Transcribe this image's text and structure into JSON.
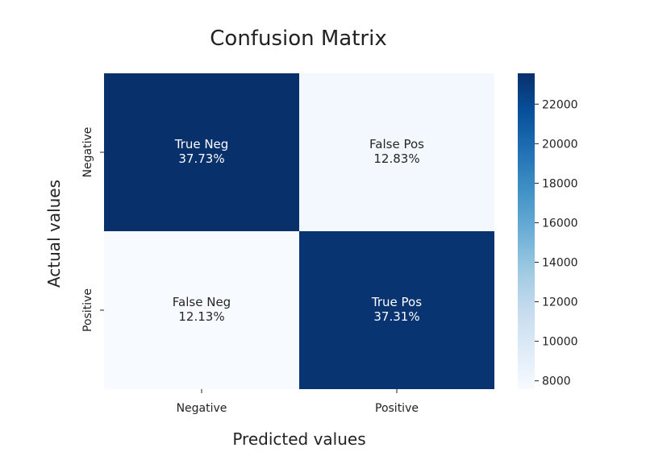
{
  "chart_data": {
    "type": "heatmap",
    "title": "Confusion Matrix",
    "xlabel": "Predicted values",
    "ylabel": "Actual values",
    "x_categories": [
      "Negative",
      "Positive"
    ],
    "y_categories": [
      "Negative",
      "Positive"
    ],
    "cells": [
      [
        {
          "label": "True Neg",
          "percent": "37.73%",
          "percent_value": 37.73,
          "count": 23560
        },
        {
          "label": "False Pos",
          "percent": "12.83%",
          "percent_value": 12.83,
          "count": 8010
        }
      ],
      [
        {
          "label": "False Neg",
          "percent": "12.13%",
          "percent_value": 12.13,
          "count": 7580
        },
        {
          "label": "True Pos",
          "percent": "37.31%",
          "percent_value": 37.31,
          "count": 23300
        }
      ]
    ],
    "colorbar": {
      "min": 7580,
      "max": 23560,
      "ticks": [
        8000,
        10000,
        12000,
        14000,
        16000,
        18000,
        20000,
        22000
      ],
      "colormap": "Blues",
      "color_low": "#f7fbff",
      "color_high": "#08306b"
    },
    "grid": false
  }
}
